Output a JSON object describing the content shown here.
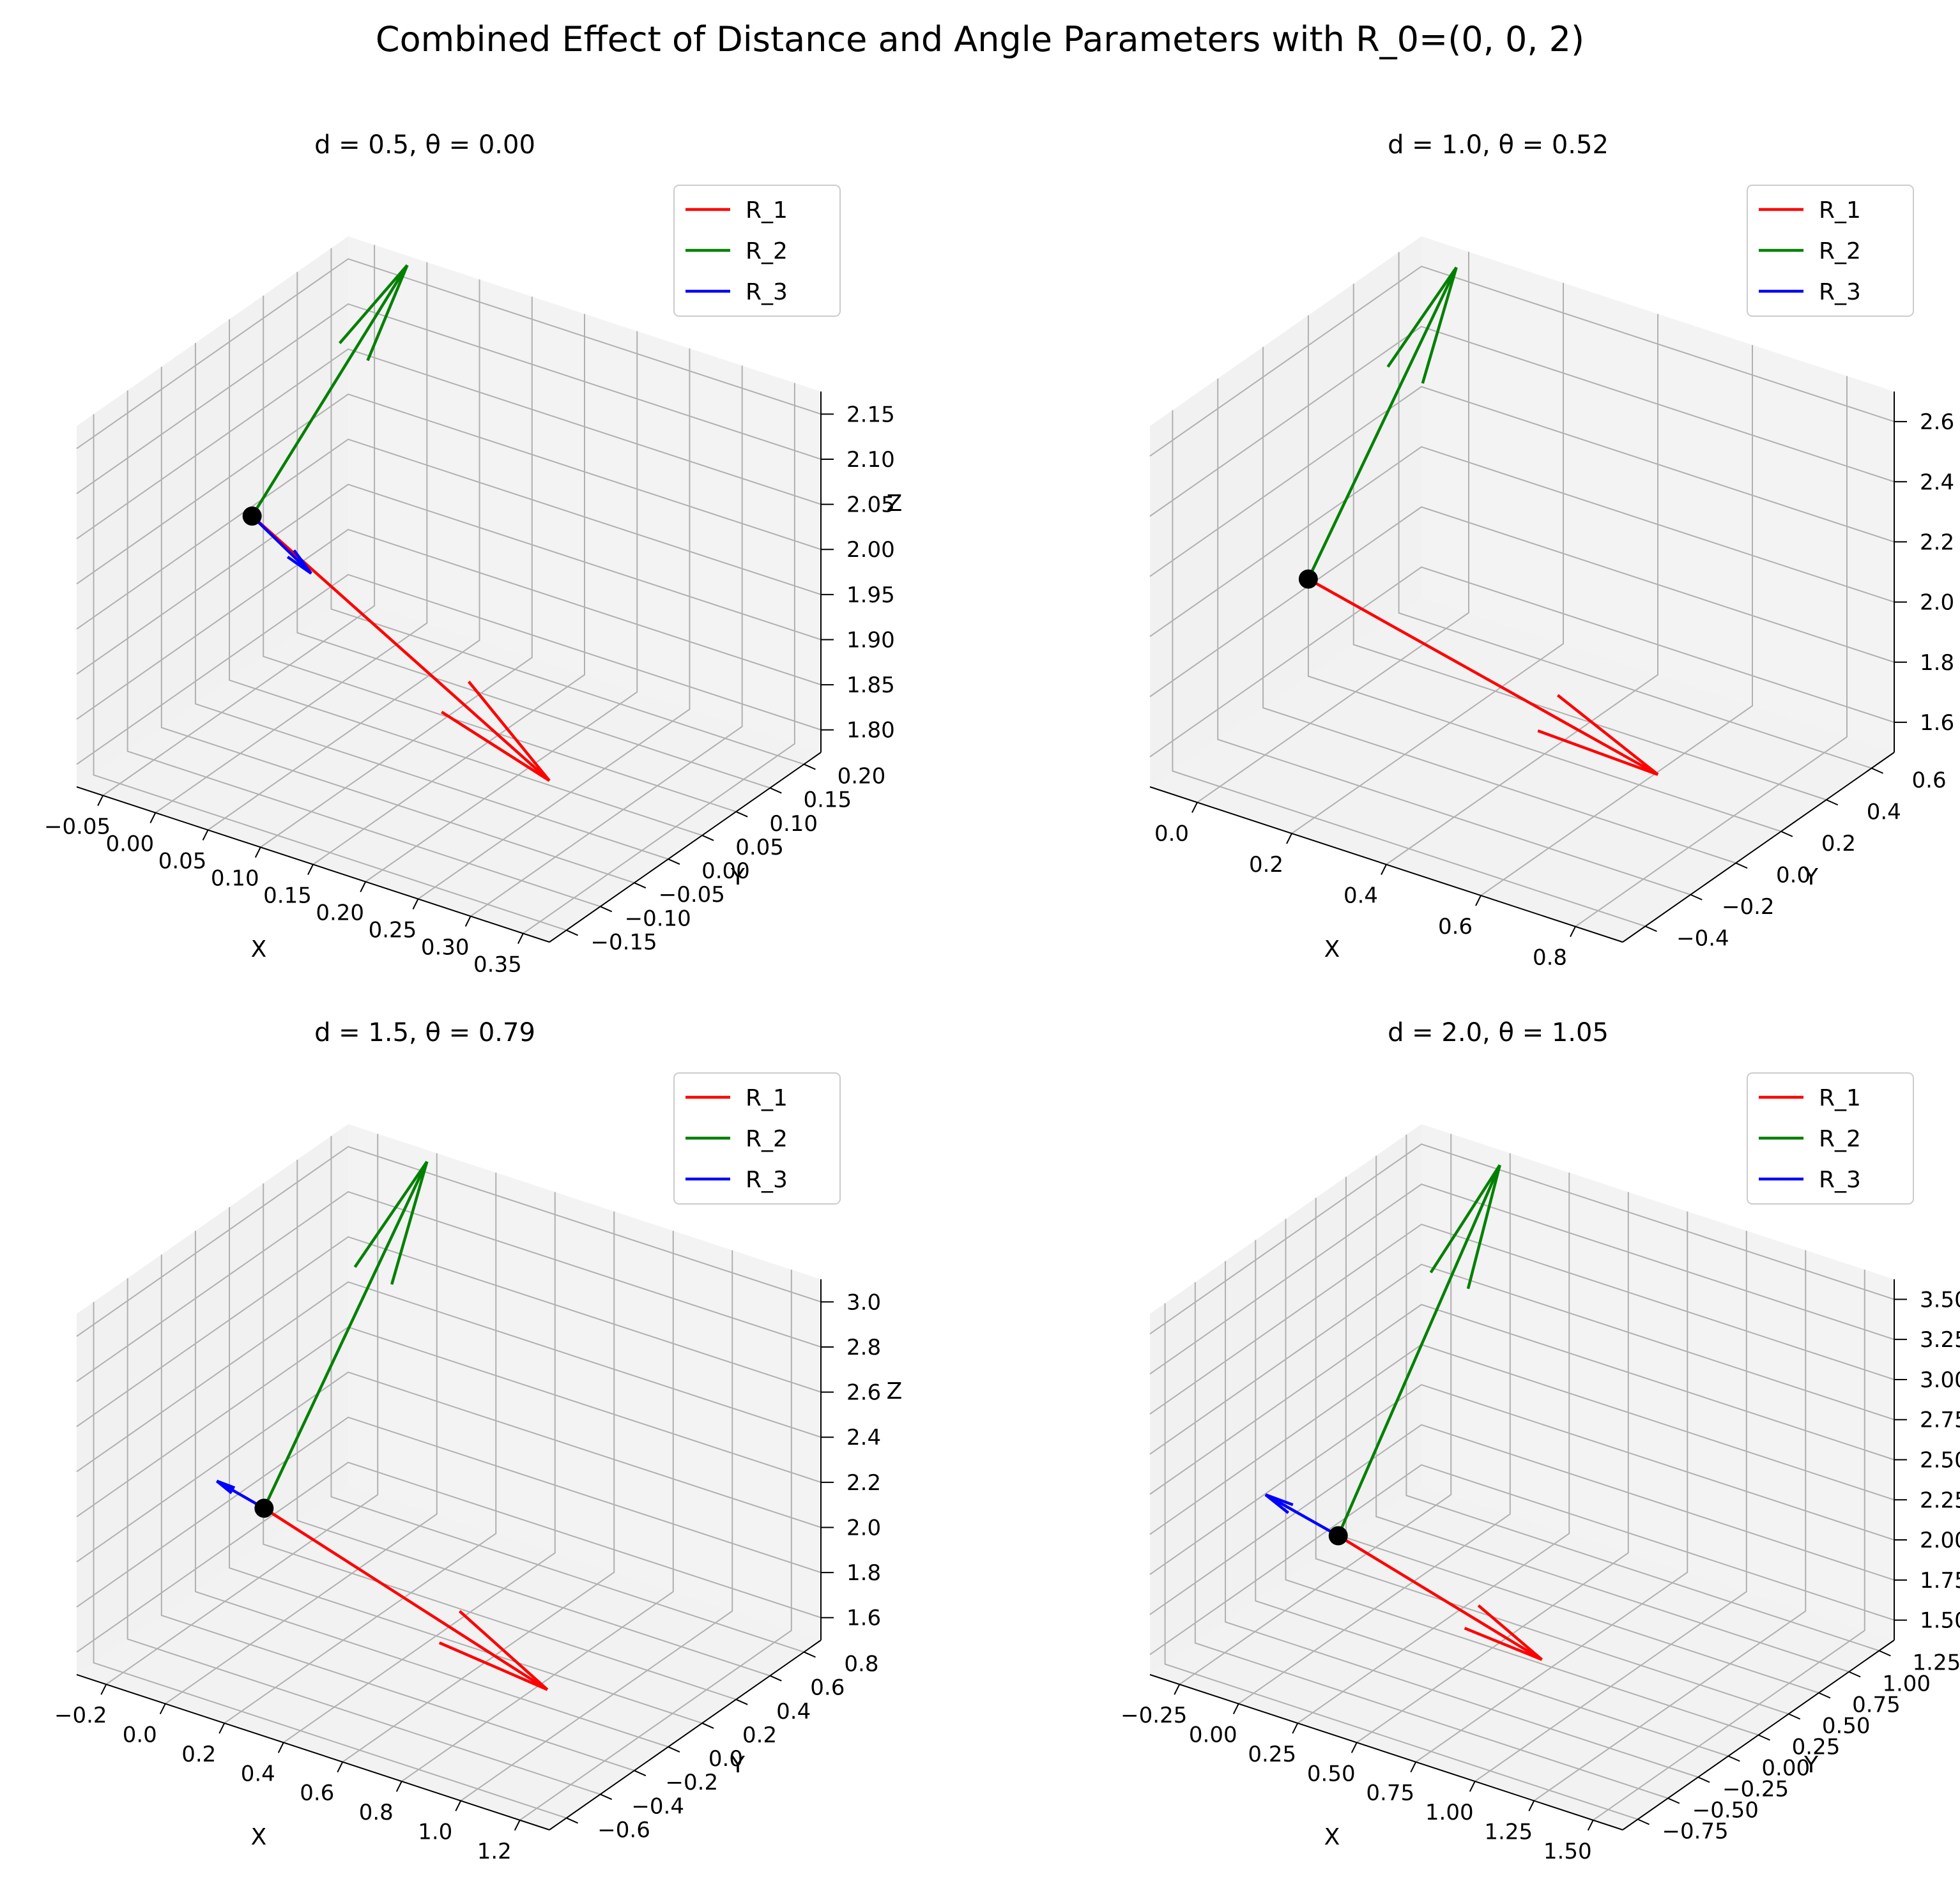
{
  "figure": {
    "title": "Combined Effect of Distance and Angle Parameters with R_0=(0, 0, 2)",
    "background": "#ffffff"
  },
  "chart_data": [
    {
      "type": "line",
      "projection": "3d",
      "title": "d = 0.5, θ = 0.00",
      "xlabel": "X",
      "ylabel": "Y",
      "zlabel": "Z",
      "xticks": [
        "−0.05",
        "0.00",
        "0.05",
        "0.10",
        "0.15",
        "0.20",
        "0.25",
        "0.30",
        "0.35"
      ],
      "yticks": [
        "−0.15",
        "−0.10",
        "−0.05",
        "0.00",
        "0.05",
        "0.10",
        "0.15",
        "0.20"
      ],
      "zticks": [
        "1.80",
        "1.85",
        "1.90",
        "1.95",
        "2.00",
        "2.05",
        "2.10",
        "2.15"
      ],
      "xlim": [
        -0.05,
        0.35
      ],
      "ylim": [
        -0.15,
        0.2
      ],
      "zlim": [
        1.78,
        2.16
      ],
      "grid": true,
      "legend": {
        "placement": "top-right",
        "entries": [
          "R_1",
          "R_2",
          "R_3"
        ]
      },
      "origin": [
        0,
        0,
        2
      ],
      "series": [
        {
          "name": "R_1",
          "color": "#ff0000",
          "start": [
            0,
            0,
            2
          ],
          "end": [
            0.35,
            -0.15,
            1.95
          ]
        },
        {
          "name": "R_2",
          "color": "#008000",
          "start": [
            0,
            0,
            2
          ],
          "end": [
            0.0,
            0.2,
            2.15
          ]
        },
        {
          "name": "R_3",
          "color": "#0000ff",
          "start": [
            0,
            0,
            2
          ],
          "end": [
            0.05,
            0.0,
            1.96
          ]
        }
      ]
    },
    {
      "type": "line",
      "projection": "3d",
      "title": "d = 1.0, θ = 0.52",
      "xlabel": "X",
      "ylabel": "Y",
      "zlabel": "Z",
      "xticks": [
        "0.0",
        "0.2",
        "0.4",
        "0.6",
        "0.8"
      ],
      "yticks": [
        "−0.4",
        "−0.2",
        "0.0",
        "0.2",
        "0.4",
        "0.6"
      ],
      "zticks": [
        "1.6",
        "1.8",
        "2.0",
        "2.2",
        "2.4",
        "2.6"
      ],
      "xlim": [
        -0.1,
        0.9
      ],
      "ylim": [
        -0.45,
        0.65
      ],
      "zlim": [
        1.58,
        2.62
      ],
      "grid": true,
      "legend": {
        "placement": "top-right",
        "entries": [
          "R_1",
          "R_2",
          "R_3"
        ]
      },
      "origin": [
        0,
        0,
        2
      ],
      "series": [
        {
          "name": "R_1",
          "color": "#ff0000",
          "start": [
            0,
            0,
            2
          ],
          "end": [
            0.87,
            -0.25,
            1.95
          ]
        },
        {
          "name": "R_2",
          "color": "#008000",
          "start": [
            0,
            0,
            2
          ],
          "end": [
            0.0,
            0.6,
            2.6
          ]
        },
        {
          "name": "R_3",
          "color": "#0000ff",
          "start": [
            0,
            0,
            2
          ],
          "end": [
            0.0,
            0.0,
            2.0
          ]
        }
      ]
    },
    {
      "type": "line",
      "projection": "3d",
      "title": "d = 1.5, θ = 0.79",
      "xlabel": "X",
      "ylabel": "Y",
      "zlabel": "Z",
      "xticks": [
        "−0.2",
        "0.0",
        "0.2",
        "0.4",
        "0.6",
        "0.8",
        "1.0",
        "1.2"
      ],
      "yticks": [
        "−0.6",
        "−0.4",
        "−0.2",
        "0.0",
        "0.2",
        "0.4",
        "0.6",
        "0.8"
      ],
      "zticks": [
        "1.6",
        "1.8",
        "2.0",
        "2.2",
        "2.4",
        "2.6",
        "2.8",
        "3.0"
      ],
      "xlim": [
        -0.25,
        1.25
      ],
      "ylim": [
        -0.6,
        0.9
      ],
      "zlim": [
        1.5,
        3.05
      ],
      "grid": true,
      "legend": {
        "placement": "top-right",
        "entries": [
          "R_1",
          "R_2",
          "R_3"
        ]
      },
      "origin": [
        0,
        0,
        2
      ],
      "series": [
        {
          "name": "R_1",
          "color": "#ff0000",
          "start": [
            0,
            0,
            2
          ],
          "end": [
            1.1,
            -0.35,
            1.9
          ]
        },
        {
          "name": "R_2",
          "color": "#008000",
          "start": [
            0,
            0,
            2
          ],
          "end": [
            0.0,
            0.9,
            3.0
          ]
        },
        {
          "name": "R_3",
          "color": "#0000ff",
          "start": [
            0,
            0,
            2
          ],
          "end": [
            -0.15,
            0.0,
            2.05
          ]
        }
      ]
    },
    {
      "type": "line",
      "projection": "3d",
      "title": "d = 2.0, θ = 1.05",
      "xlabel": "X",
      "ylabel": "Y",
      "zlabel": "Z",
      "xticks": [
        "−0.25",
        "0.00",
        "0.25",
        "0.50",
        "0.75",
        "1.00",
        "1.25",
        "1.50"
      ],
      "yticks": [
        "−0.75",
        "−0.50",
        "−0.25",
        "0.00",
        "0.25",
        "0.50",
        "0.75",
        "1.00",
        "1.25"
      ],
      "zticks": [
        "1.50",
        "1.75",
        "2.00",
        "2.25",
        "2.50",
        "2.75",
        "3.00",
        "3.25",
        "3.50"
      ],
      "xlim": [
        -0.35,
        1.6
      ],
      "ylim": [
        -0.8,
        1.3
      ],
      "zlim": [
        1.45,
        3.55
      ],
      "grid": true,
      "legend": {
        "placement": "top-right",
        "entries": [
          "R_1",
          "R_2",
          "R_3"
        ]
      },
      "origin": [
        0,
        0,
        2
      ],
      "series": [
        {
          "name": "R_1",
          "color": "#ff0000",
          "start": [
            0,
            0,
            2
          ],
          "end": [
            1.0,
            -0.3,
            1.9
          ]
        },
        {
          "name": "R_2",
          "color": "#008000",
          "start": [
            0,
            0,
            2
          ],
          "end": [
            0.0,
            1.25,
            3.5
          ]
        },
        {
          "name": "R_3",
          "color": "#0000ff",
          "start": [
            0,
            0,
            2
          ],
          "end": [
            -0.3,
            0.0,
            2.1
          ]
        }
      ]
    }
  ]
}
